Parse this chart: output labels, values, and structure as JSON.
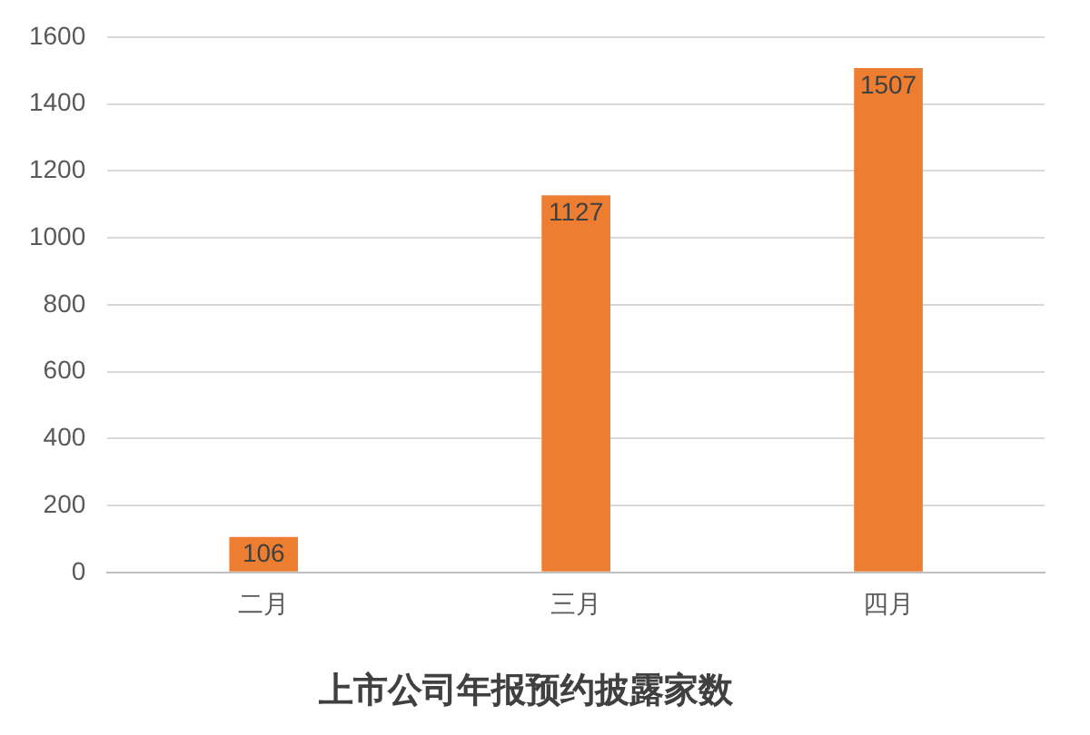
{
  "chart_data": {
    "type": "bar",
    "title": "上市公司年报预约披露家数",
    "categories": [
      "二月",
      "三月",
      "四月"
    ],
    "values": [
      106,
      1127,
      1507
    ],
    "color": "#ed7d31",
    "ylim": [
      0,
      1600
    ],
    "yticks": [
      0,
      200,
      400,
      600,
      800,
      1000,
      1200,
      1400,
      1600
    ],
    "grid": "y",
    "data_labels": true
  }
}
